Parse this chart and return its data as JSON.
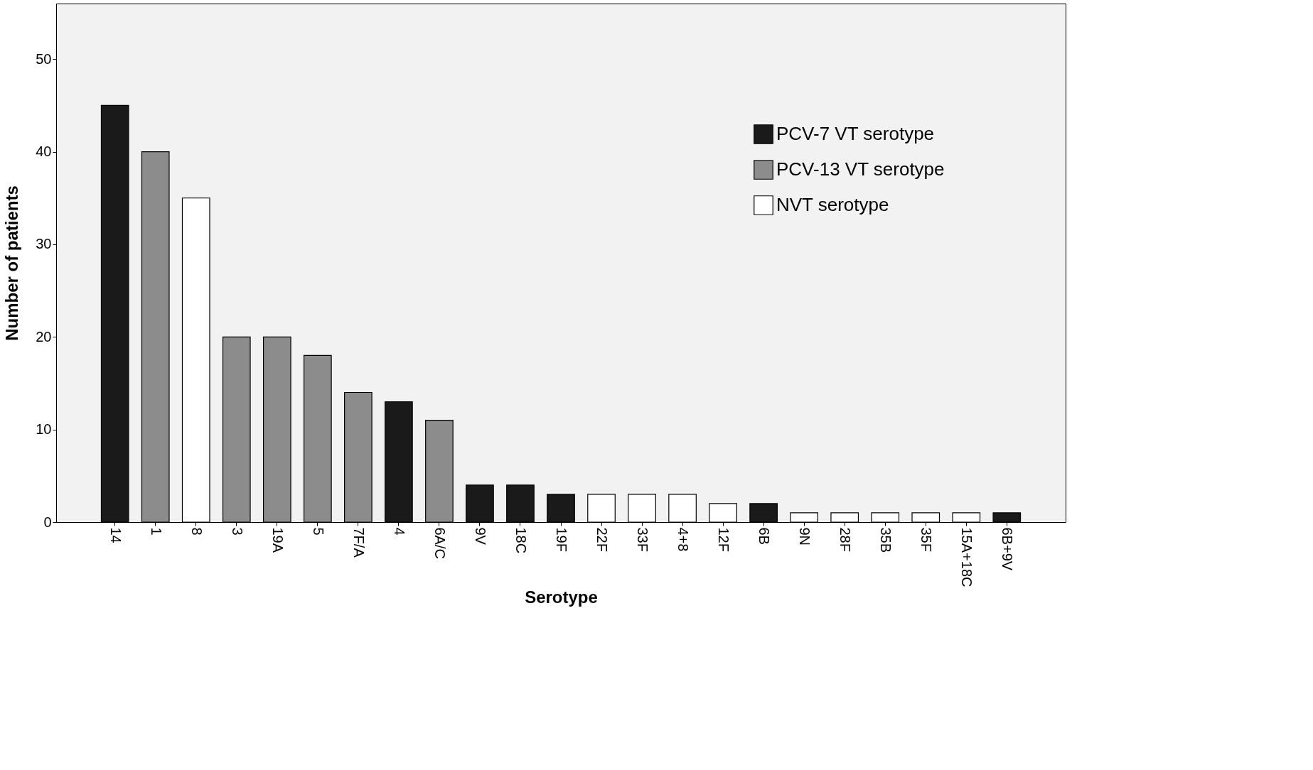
{
  "chart_data": {
    "type": "bar",
    "xlabel": "Serotype",
    "ylabel": "Number of patients",
    "categories": [
      "14",
      "1",
      "8",
      "3",
      "19A",
      "5",
      "7F/A",
      "4",
      "6A/C",
      "9V",
      "18C",
      "19F",
      "22F",
      "33F",
      "4+8",
      "12F",
      "6B",
      "9N",
      "28F",
      "35B",
      "35F",
      "15A+18C",
      "6B+9V"
    ],
    "series": [
      {
        "name": "PCV-7 VT serotype",
        "color": "#1a1a1a",
        "values": [
          45,
          null,
          null,
          null,
          null,
          null,
          null,
          13,
          null,
          4,
          4,
          3,
          null,
          null,
          null,
          null,
          2,
          null,
          null,
          null,
          null,
          null,
          1
        ]
      },
      {
        "name": "PCV-13 VT serotype",
        "color": "#8c8c8c",
        "values": [
          null,
          40,
          null,
          20,
          20,
          18,
          14,
          null,
          11,
          null,
          null,
          null,
          null,
          null,
          null,
          null,
          null,
          null,
          null,
          null,
          null,
          null,
          null
        ]
      },
      {
        "name": "NVT serotype",
        "color": "#ffffff",
        "values": [
          null,
          null,
          35,
          null,
          null,
          null,
          null,
          null,
          null,
          null,
          null,
          null,
          3,
          3,
          3,
          2,
          null,
          1,
          1,
          1,
          1,
          1,
          null
        ]
      }
    ],
    "ylim": [
      0,
      56
    ],
    "yticks": [
      0,
      10,
      20,
      30,
      40,
      50
    ],
    "grid": false,
    "legend": "top right"
  }
}
